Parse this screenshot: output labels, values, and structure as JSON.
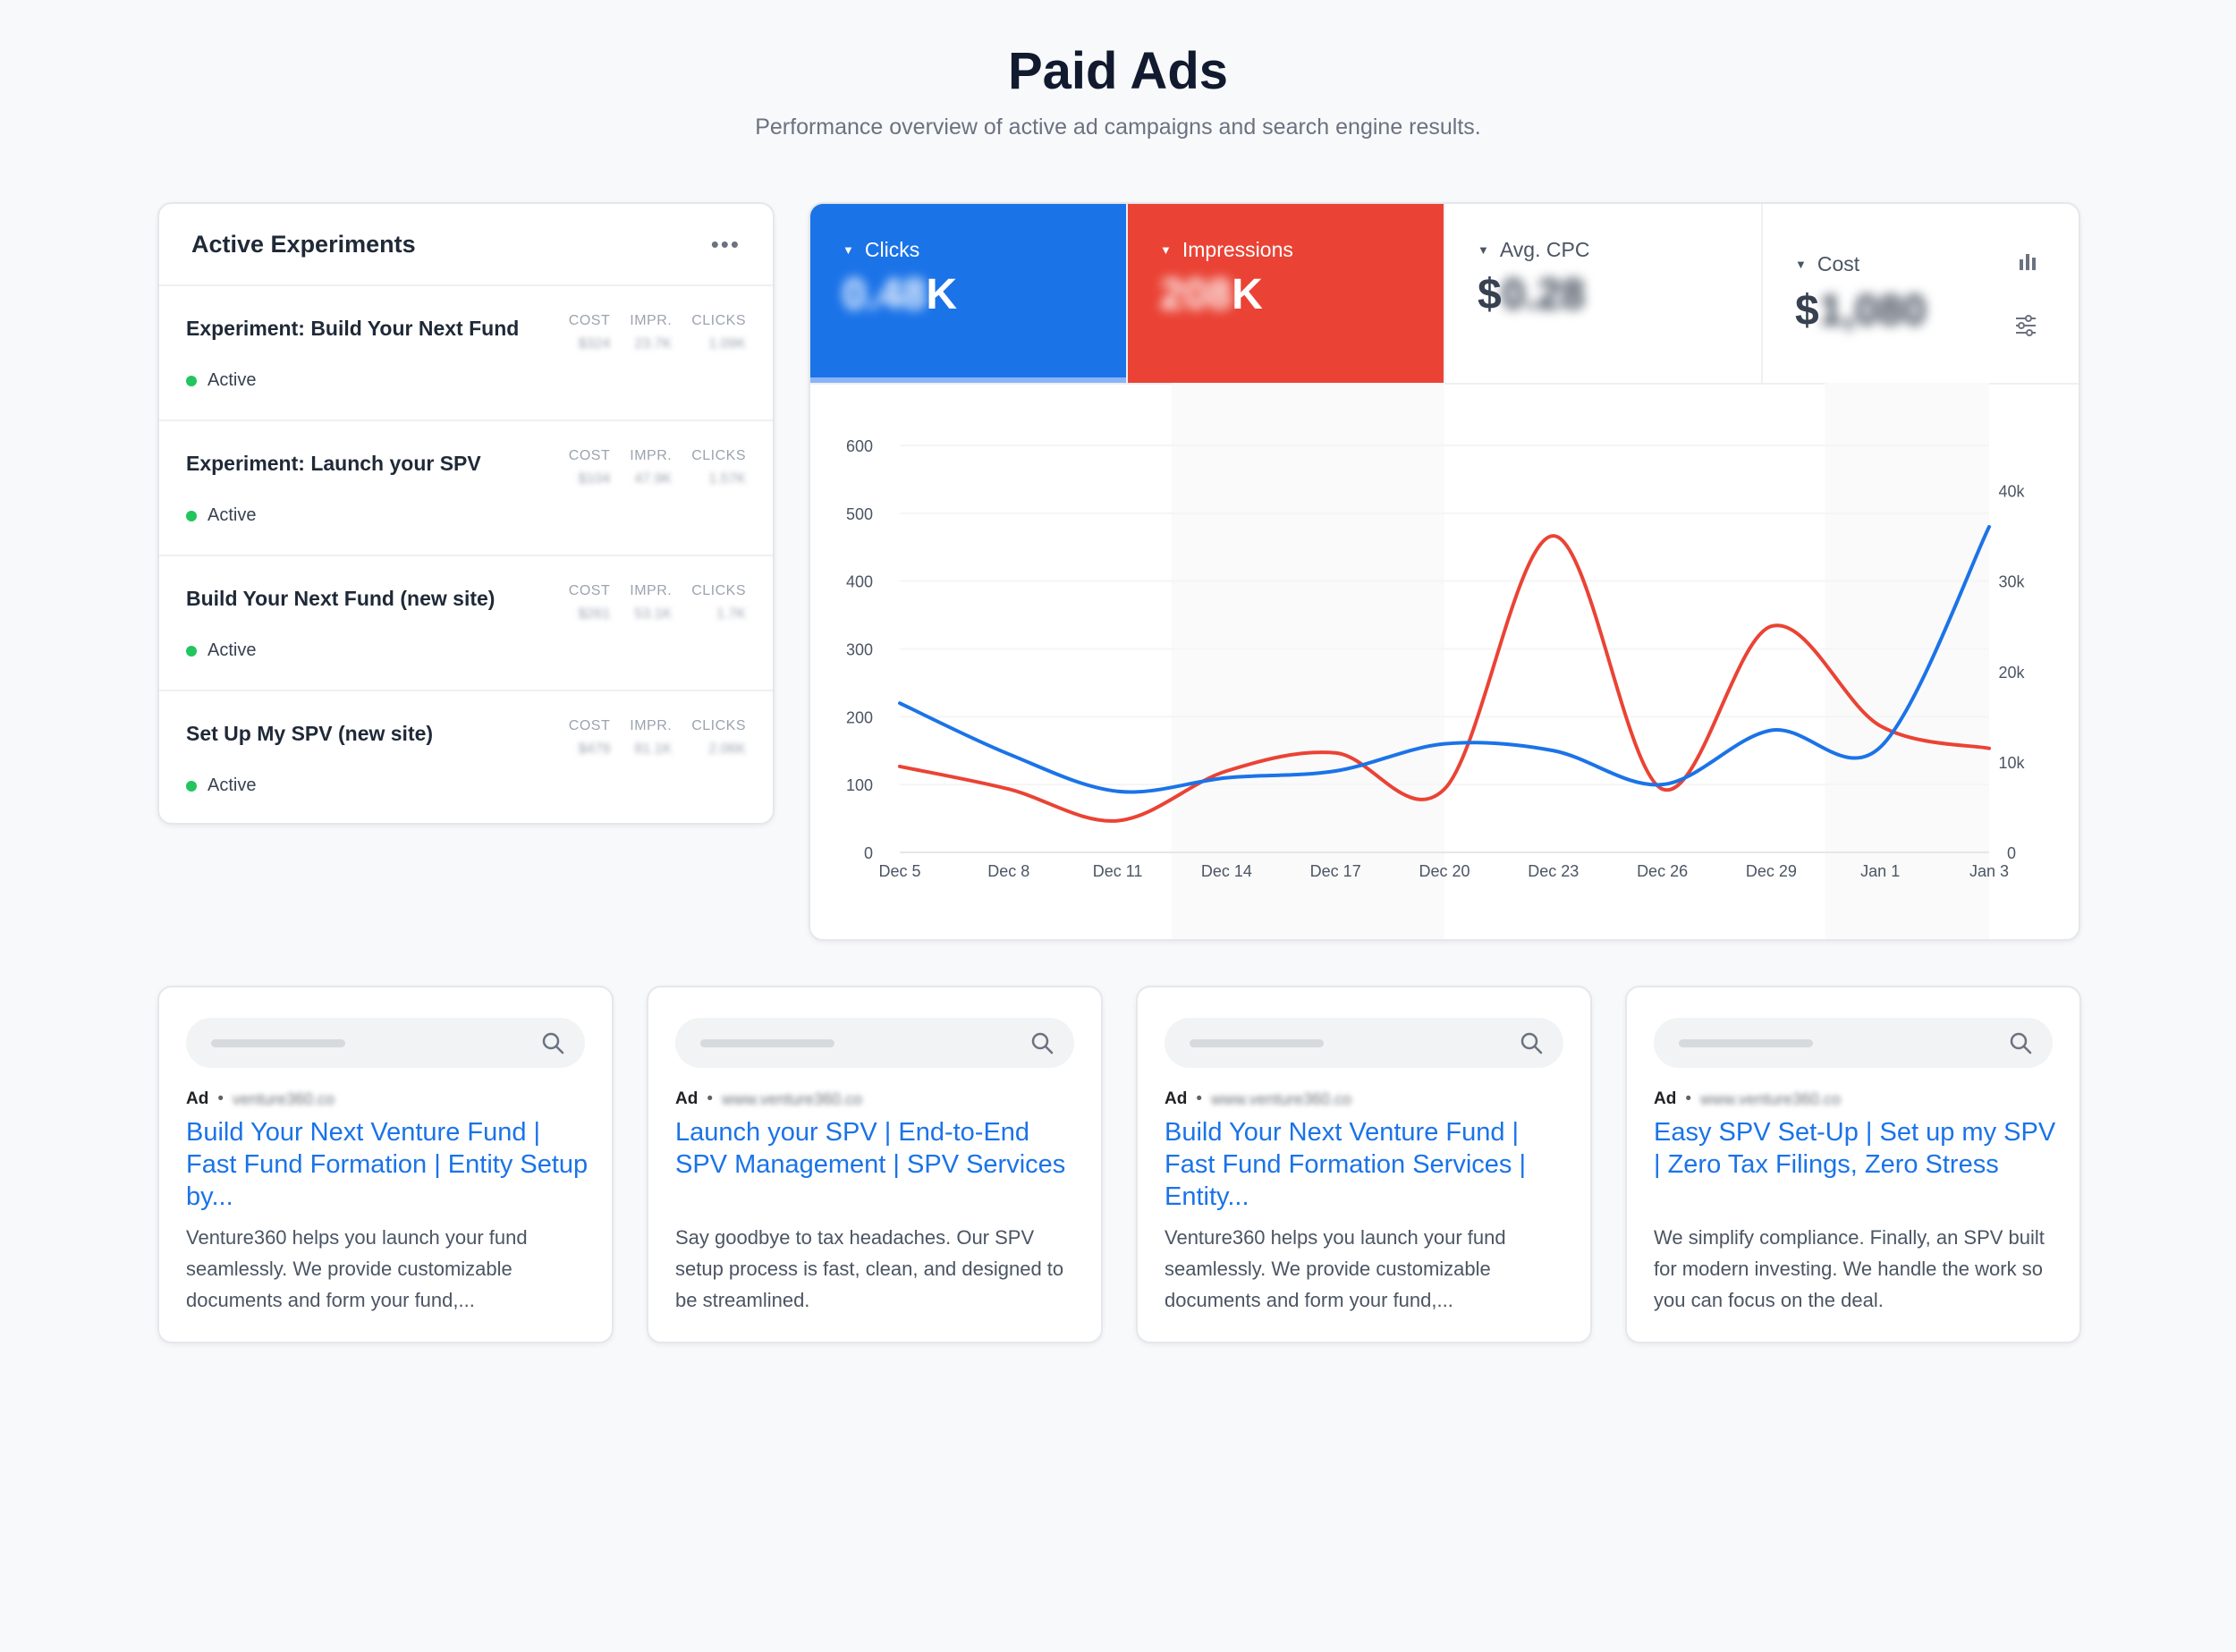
{
  "page": {
    "title": "Paid Ads",
    "subtitle": "Performance overview of active ad campaigns and search engine results."
  },
  "experiments": {
    "title": "Active Experiments",
    "more_icon": "more-horizontal-icon",
    "columns": {
      "cost": "COST",
      "impr": "IMPR.",
      "clicks": "CLICKS"
    },
    "items": [
      {
        "name": "Experiment: Build Your Next Fund",
        "status": "Active",
        "cost": "$324",
        "impr": "23.7K",
        "clicks": "1.09K"
      },
      {
        "name": "Experiment: Launch your SPV",
        "status": "Active",
        "cost": "$104",
        "impr": "47.9K",
        "clicks": "1.57K"
      },
      {
        "name": "Build Your Next Fund (new site)",
        "status": "Active",
        "cost": "$261",
        "impr": "53.1K",
        "clicks": "1.7K"
      },
      {
        "name": "Set Up My SPV (new site)",
        "status": "Active",
        "cost": "$479",
        "impr": "81.1K",
        "clicks": "2.06K"
      }
    ]
  },
  "kpis": {
    "clicks": {
      "label": "Clicks",
      "value_hidden": "0.48",
      "suffix": "K"
    },
    "impressions": {
      "label": "Impressions",
      "value_hidden": "208",
      "suffix": "K"
    },
    "avg_cpc": {
      "label": "Avg. CPC",
      "prefix": "$",
      "value_hidden": "0.28"
    },
    "cost": {
      "label": "Cost",
      "prefix": "$",
      "value_hidden": "1,080"
    }
  },
  "colors": {
    "clicks": "#1b73e8",
    "impressions": "#ea4335",
    "status_active": "#22c55e"
  },
  "chart_data": {
    "type": "line",
    "x": [
      "Dec 5",
      "Dec 8",
      "Dec 11",
      "Dec 14",
      "Dec 17",
      "Dec 20",
      "Dec 23",
      "Dec 26",
      "Dec 29",
      "Jan 1",
      "Jan 3"
    ],
    "series": [
      {
        "name": "Clicks",
        "axis": "left",
        "color": "#1b73e8",
        "values": [
          220,
          145,
          90,
          110,
          120,
          160,
          150,
          100,
          180,
          155,
          480
        ]
      },
      {
        "name": "Impressions",
        "axis": "right",
        "color": "#ea4335",
        "values": [
          9500,
          7000,
          3500,
          9000,
          11000,
          7000,
          35000,
          7000,
          25000,
          14000,
          11500
        ]
      }
    ],
    "y_left": {
      "ticks": [
        0,
        100,
        200,
        300,
        400,
        500,
        600
      ],
      "range": [
        0,
        600
      ]
    },
    "y_right": {
      "ticks": [
        "0",
        "10k",
        "20k",
        "30k",
        "40k"
      ],
      "range": [
        0,
        45000
      ]
    }
  },
  "ads": [
    {
      "ad_label": "Ad",
      "url": "venture360.co",
      "title": "Build Your Next Venture Fund | Fast Fund Formation | Entity Setup by...",
      "description": "Venture360 helps you launch your fund seamlessly. We provide customizable documents and form your fund,..."
    },
    {
      "ad_label": "Ad",
      "url": "www.venture360.co",
      "title": "Launch your SPV | End-to-End SPV Management | SPV Services",
      "description": "Say goodbye to tax headaches. Our SPV setup process is fast, clean, and designed to be streamlined."
    },
    {
      "ad_label": "Ad",
      "url": "www.venture360.co",
      "title": "Build Your Next Venture Fund | Fast Fund Formation Services | Entity...",
      "description": "Venture360 helps you launch your fund seamlessly. We provide customizable documents and form your fund,..."
    },
    {
      "ad_label": "Ad",
      "url": "www.venture360.co",
      "title": "Easy SPV Set-Up | Set up my SPV | Zero Tax Filings, Zero Stress",
      "description": "We simplify compliance. Finally, an SPV built for modern investing. We handle the work so you can focus on the deal."
    }
  ]
}
